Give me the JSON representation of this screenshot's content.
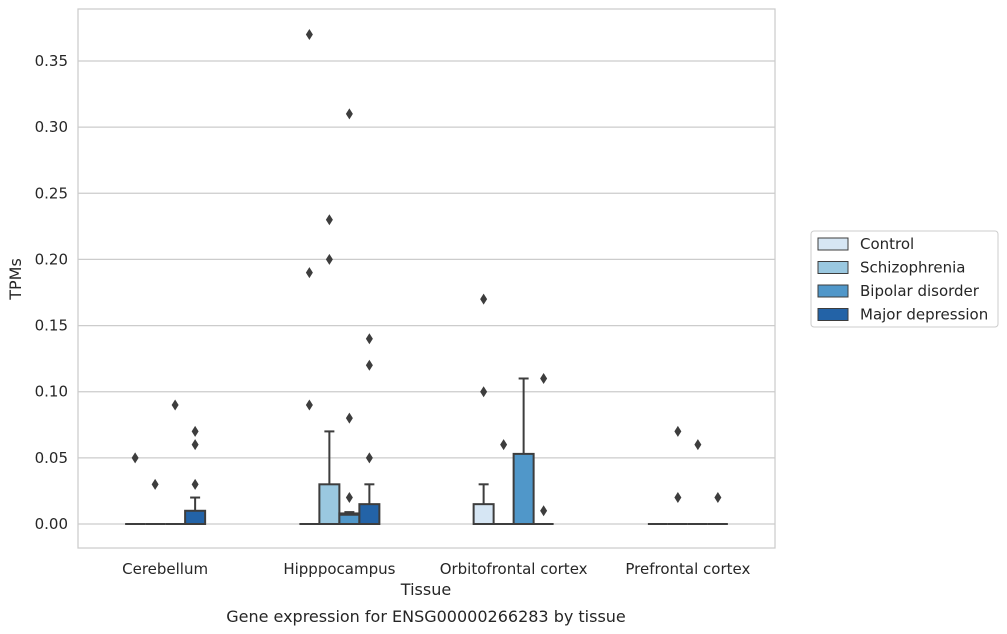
{
  "chart_data": {
    "type": "box",
    "title": "",
    "caption": "Gene expression for ENSG00000266283 by tissue",
    "xlabel": "Tissue",
    "ylabel": "TPMs",
    "ylim": [
      -0.018,
      0.389
    ],
    "yticks": [
      0.0,
      0.05,
      0.1,
      0.15,
      0.2,
      0.25,
      0.3,
      0.35
    ],
    "ytick_labels": [
      "0.00",
      "0.05",
      "0.10",
      "0.15",
      "0.20",
      "0.25",
      "0.30",
      "0.35"
    ],
    "grid": "horizontal",
    "legend_position": "right",
    "categories": [
      "Cerebellum",
      "Hipppocampus",
      "Orbitofrontal cortex",
      "Prefrontal cortex"
    ],
    "series": [
      {
        "name": "Control",
        "color": "#d6e6f4",
        "boxes": [
          {
            "q1": 0,
            "median": 0,
            "q3": 0,
            "whislo": 0,
            "whishi": 0,
            "fliers": [
              0.05
            ]
          },
          {
            "q1": 0,
            "median": 0,
            "q3": 0,
            "whislo": 0,
            "whishi": 0,
            "fliers": [
              0.09,
              0.19,
              0.37
            ]
          },
          {
            "q1": 0,
            "median": 0,
            "q3": 0.015,
            "whislo": 0,
            "whishi": 0.03,
            "fliers": [
              0.1,
              0.17
            ]
          },
          {
            "q1": 0,
            "median": 0,
            "q3": 0,
            "whislo": 0,
            "whishi": 0,
            "fliers": []
          }
        ]
      },
      {
        "name": "Schizophrenia",
        "color": "#9ac8e0",
        "boxes": [
          {
            "q1": 0,
            "median": 0,
            "q3": 0,
            "whislo": 0,
            "whishi": 0,
            "fliers": [
              0.03
            ]
          },
          {
            "q1": 0,
            "median": 0,
            "q3": 0.03,
            "whislo": 0,
            "whishi": 0.07,
            "fliers": [
              0.2,
              0.23
            ]
          },
          {
            "q1": 0,
            "median": 0,
            "q3": 0,
            "whislo": 0,
            "whishi": 0,
            "fliers": [
              0.06
            ]
          },
          {
            "q1": 0,
            "median": 0,
            "q3": 0,
            "whislo": 0,
            "whishi": 0,
            "fliers": [
              0.02,
              0.07
            ]
          }
        ]
      },
      {
        "name": "Bipolar disorder",
        "color": "#5097c9",
        "boxes": [
          {
            "q1": 0,
            "median": 0,
            "q3": 0,
            "whislo": 0,
            "whishi": 0,
            "fliers": [
              0.09
            ]
          },
          {
            "q1": 0,
            "median": 0.007,
            "q3": 0.008,
            "whislo": 0,
            "whishi": 0.009,
            "fliers": [
              0.02,
              0.08,
              0.31
            ]
          },
          {
            "q1": 0,
            "median": 0,
            "q3": 0.053,
            "whislo": 0,
            "whishi": 0.11,
            "fliers": []
          },
          {
            "q1": 0,
            "median": 0,
            "q3": 0,
            "whislo": 0,
            "whishi": 0,
            "fliers": [
              0.06
            ]
          }
        ]
      },
      {
        "name": "Major depression",
        "color": "#2363a7",
        "boxes": [
          {
            "q1": 0,
            "median": 0,
            "q3": 0.01,
            "whislo": 0,
            "whishi": 0.02,
            "fliers": [
              0.03,
              0.06,
              0.07
            ]
          },
          {
            "q1": 0,
            "median": 0,
            "q3": 0.015,
            "whislo": 0,
            "whishi": 0.03,
            "fliers": [
              0.05,
              0.12,
              0.14
            ]
          },
          {
            "q1": 0,
            "median": 0,
            "q3": 0,
            "whislo": 0,
            "whishi": 0,
            "fliers": [
              0.01,
              0.11
            ]
          },
          {
            "q1": 0,
            "median": 0,
            "q3": 0,
            "whislo": 0,
            "whishi": 0,
            "fliers": [
              0.02
            ]
          }
        ]
      }
    ]
  }
}
